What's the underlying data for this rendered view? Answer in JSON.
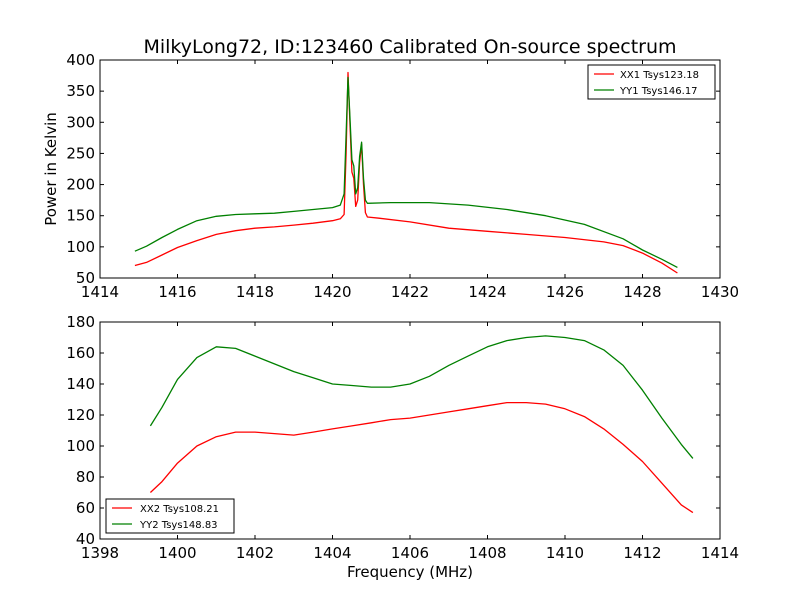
{
  "figure": {
    "title": "MilkyLong72, ID:123460 Calibrated On-source spectrum"
  },
  "chart_data": [
    {
      "type": "line",
      "title": "MilkyLong72, ID:123460 Calibrated On-source spectrum",
      "xlabel": "",
      "ylabel": "Power in Kelvin",
      "xlim": [
        1414,
        1430
      ],
      "ylim": [
        50,
        400
      ],
      "xticks": [
        "1414",
        "1416",
        "1418",
        "1420",
        "1422",
        "1424",
        "1426",
        "1428",
        "1430"
      ],
      "yticks": [
        "50",
        "100",
        "150",
        "200",
        "250",
        "300",
        "350",
        "400"
      ],
      "grid": false,
      "legend_position": "top-right",
      "series": [
        {
          "name": "XX1 Tsys123.18",
          "color": "#ff0000",
          "points": [
            [
              1414.9,
              70
            ],
            [
              1415.2,
              75
            ],
            [
              1415.6,
              87
            ],
            [
              1416.0,
              99
            ],
            [
              1416.5,
              110
            ],
            [
              1417.0,
              120
            ],
            [
              1417.5,
              126
            ],
            [
              1418.0,
              130
            ],
            [
              1418.5,
              132
            ],
            [
              1419.0,
              135
            ],
            [
              1419.5,
              138
            ],
            [
              1420.0,
              142
            ],
            [
              1420.2,
              145
            ],
            [
              1420.3,
              152
            ],
            [
              1420.35,
              250
            ],
            [
              1420.4,
              380
            ],
            [
              1420.45,
              300
            ],
            [
              1420.5,
              220
            ],
            [
              1420.55,
              210
            ],
            [
              1420.6,
              165
            ],
            [
              1420.65,
              175
            ],
            [
              1420.7,
              235
            ],
            [
              1420.75,
              265
            ],
            [
              1420.8,
              200
            ],
            [
              1420.85,
              155
            ],
            [
              1420.9,
              148
            ],
            [
              1421.2,
              146
            ],
            [
              1422.0,
              140
            ],
            [
              1423.0,
              130
            ],
            [
              1424.0,
              125
            ],
            [
              1425.0,
              120
            ],
            [
              1426.0,
              115
            ],
            [
              1427.0,
              108
            ],
            [
              1427.5,
              102
            ],
            [
              1428.0,
              90
            ],
            [
              1428.5,
              74
            ],
            [
              1428.9,
              58
            ]
          ]
        },
        {
          "name": "YY1 Tsys146.17",
          "color": "#008000",
          "points": [
            [
              1414.9,
              93
            ],
            [
              1415.2,
              101
            ],
            [
              1415.6,
              115
            ],
            [
              1416.0,
              128
            ],
            [
              1416.5,
              142
            ],
            [
              1417.0,
              149
            ],
            [
              1417.5,
              152
            ],
            [
              1418.0,
              153
            ],
            [
              1418.5,
              154
            ],
            [
              1419.0,
              157
            ],
            [
              1419.5,
              160
            ],
            [
              1420.0,
              163
            ],
            [
              1420.2,
              167
            ],
            [
              1420.3,
              185
            ],
            [
              1420.35,
              280
            ],
            [
              1420.4,
              372
            ],
            [
              1420.45,
              310
            ],
            [
              1420.5,
              240
            ],
            [
              1420.55,
              230
            ],
            [
              1420.6,
              185
            ],
            [
              1420.65,
              195
            ],
            [
              1420.7,
              245
            ],
            [
              1420.75,
              268
            ],
            [
              1420.8,
              210
            ],
            [
              1420.85,
              175
            ],
            [
              1420.9,
              170
            ],
            [
              1421.5,
              171
            ],
            [
              1422.5,
              171
            ],
            [
              1423.5,
              167
            ],
            [
              1424.5,
              160
            ],
            [
              1425.5,
              150
            ],
            [
              1426.5,
              136
            ],
            [
              1427.5,
              113
            ],
            [
              1428.0,
              95
            ],
            [
              1428.5,
              80
            ],
            [
              1428.9,
              67
            ]
          ]
        }
      ]
    },
    {
      "type": "line",
      "title": "",
      "xlabel": "Frequency (MHz)",
      "ylabel": "",
      "xlim": [
        1398,
        1414
      ],
      "ylim": [
        40,
        180
      ],
      "xticks": [
        "1398",
        "1400",
        "1402",
        "1404",
        "1406",
        "1408",
        "1410",
        "1412",
        "1414"
      ],
      "yticks": [
        "40",
        "60",
        "80",
        "100",
        "120",
        "140",
        "160",
        "180"
      ],
      "grid": false,
      "legend_position": "bottom-left",
      "series": [
        {
          "name": "XX2 Tsys108.21",
          "color": "#ff0000",
          "points": [
            [
              1399.3,
              70
            ],
            [
              1399.6,
              77
            ],
            [
              1400.0,
              89
            ],
            [
              1400.5,
              100
            ],
            [
              1401.0,
              106
            ],
            [
              1401.5,
              109
            ],
            [
              1402.0,
              109
            ],
            [
              1402.5,
              108
            ],
            [
              1403.0,
              107
            ],
            [
              1403.5,
              109
            ],
            [
              1404.0,
              111
            ],
            [
              1404.5,
              113
            ],
            [
              1405.0,
              115
            ],
            [
              1405.5,
              117
            ],
            [
              1406.0,
              118
            ],
            [
              1406.5,
              120
            ],
            [
              1407.0,
              122
            ],
            [
              1407.5,
              124
            ],
            [
              1408.0,
              126
            ],
            [
              1408.5,
              128
            ],
            [
              1409.0,
              128
            ],
            [
              1409.5,
              127
            ],
            [
              1410.0,
              124
            ],
            [
              1410.5,
              119
            ],
            [
              1411.0,
              111
            ],
            [
              1411.5,
              101
            ],
            [
              1412.0,
              90
            ],
            [
              1412.5,
              76
            ],
            [
              1413.0,
              62
            ],
            [
              1413.3,
              57
            ]
          ]
        },
        {
          "name": "YY2 Tsys148.83",
          "color": "#008000",
          "points": [
            [
              1399.3,
              113
            ],
            [
              1399.6,
              125
            ],
            [
              1400.0,
              143
            ],
            [
              1400.5,
              157
            ],
            [
              1401.0,
              164
            ],
            [
              1401.5,
              163
            ],
            [
              1402.0,
              158
            ],
            [
              1402.5,
              153
            ],
            [
              1403.0,
              148
            ],
            [
              1403.5,
              144
            ],
            [
              1404.0,
              140
            ],
            [
              1404.5,
              139
            ],
            [
              1405.0,
              138
            ],
            [
              1405.5,
              138
            ],
            [
              1406.0,
              140
            ],
            [
              1406.5,
              145
            ],
            [
              1407.0,
              152
            ],
            [
              1407.5,
              158
            ],
            [
              1408.0,
              164
            ],
            [
              1408.5,
              168
            ],
            [
              1409.0,
              170
            ],
            [
              1409.5,
              171
            ],
            [
              1410.0,
              170
            ],
            [
              1410.5,
              168
            ],
            [
              1411.0,
              162
            ],
            [
              1411.5,
              152
            ],
            [
              1412.0,
              136
            ],
            [
              1412.5,
              118
            ],
            [
              1413.0,
              101
            ],
            [
              1413.3,
              92
            ]
          ]
        }
      ]
    }
  ]
}
